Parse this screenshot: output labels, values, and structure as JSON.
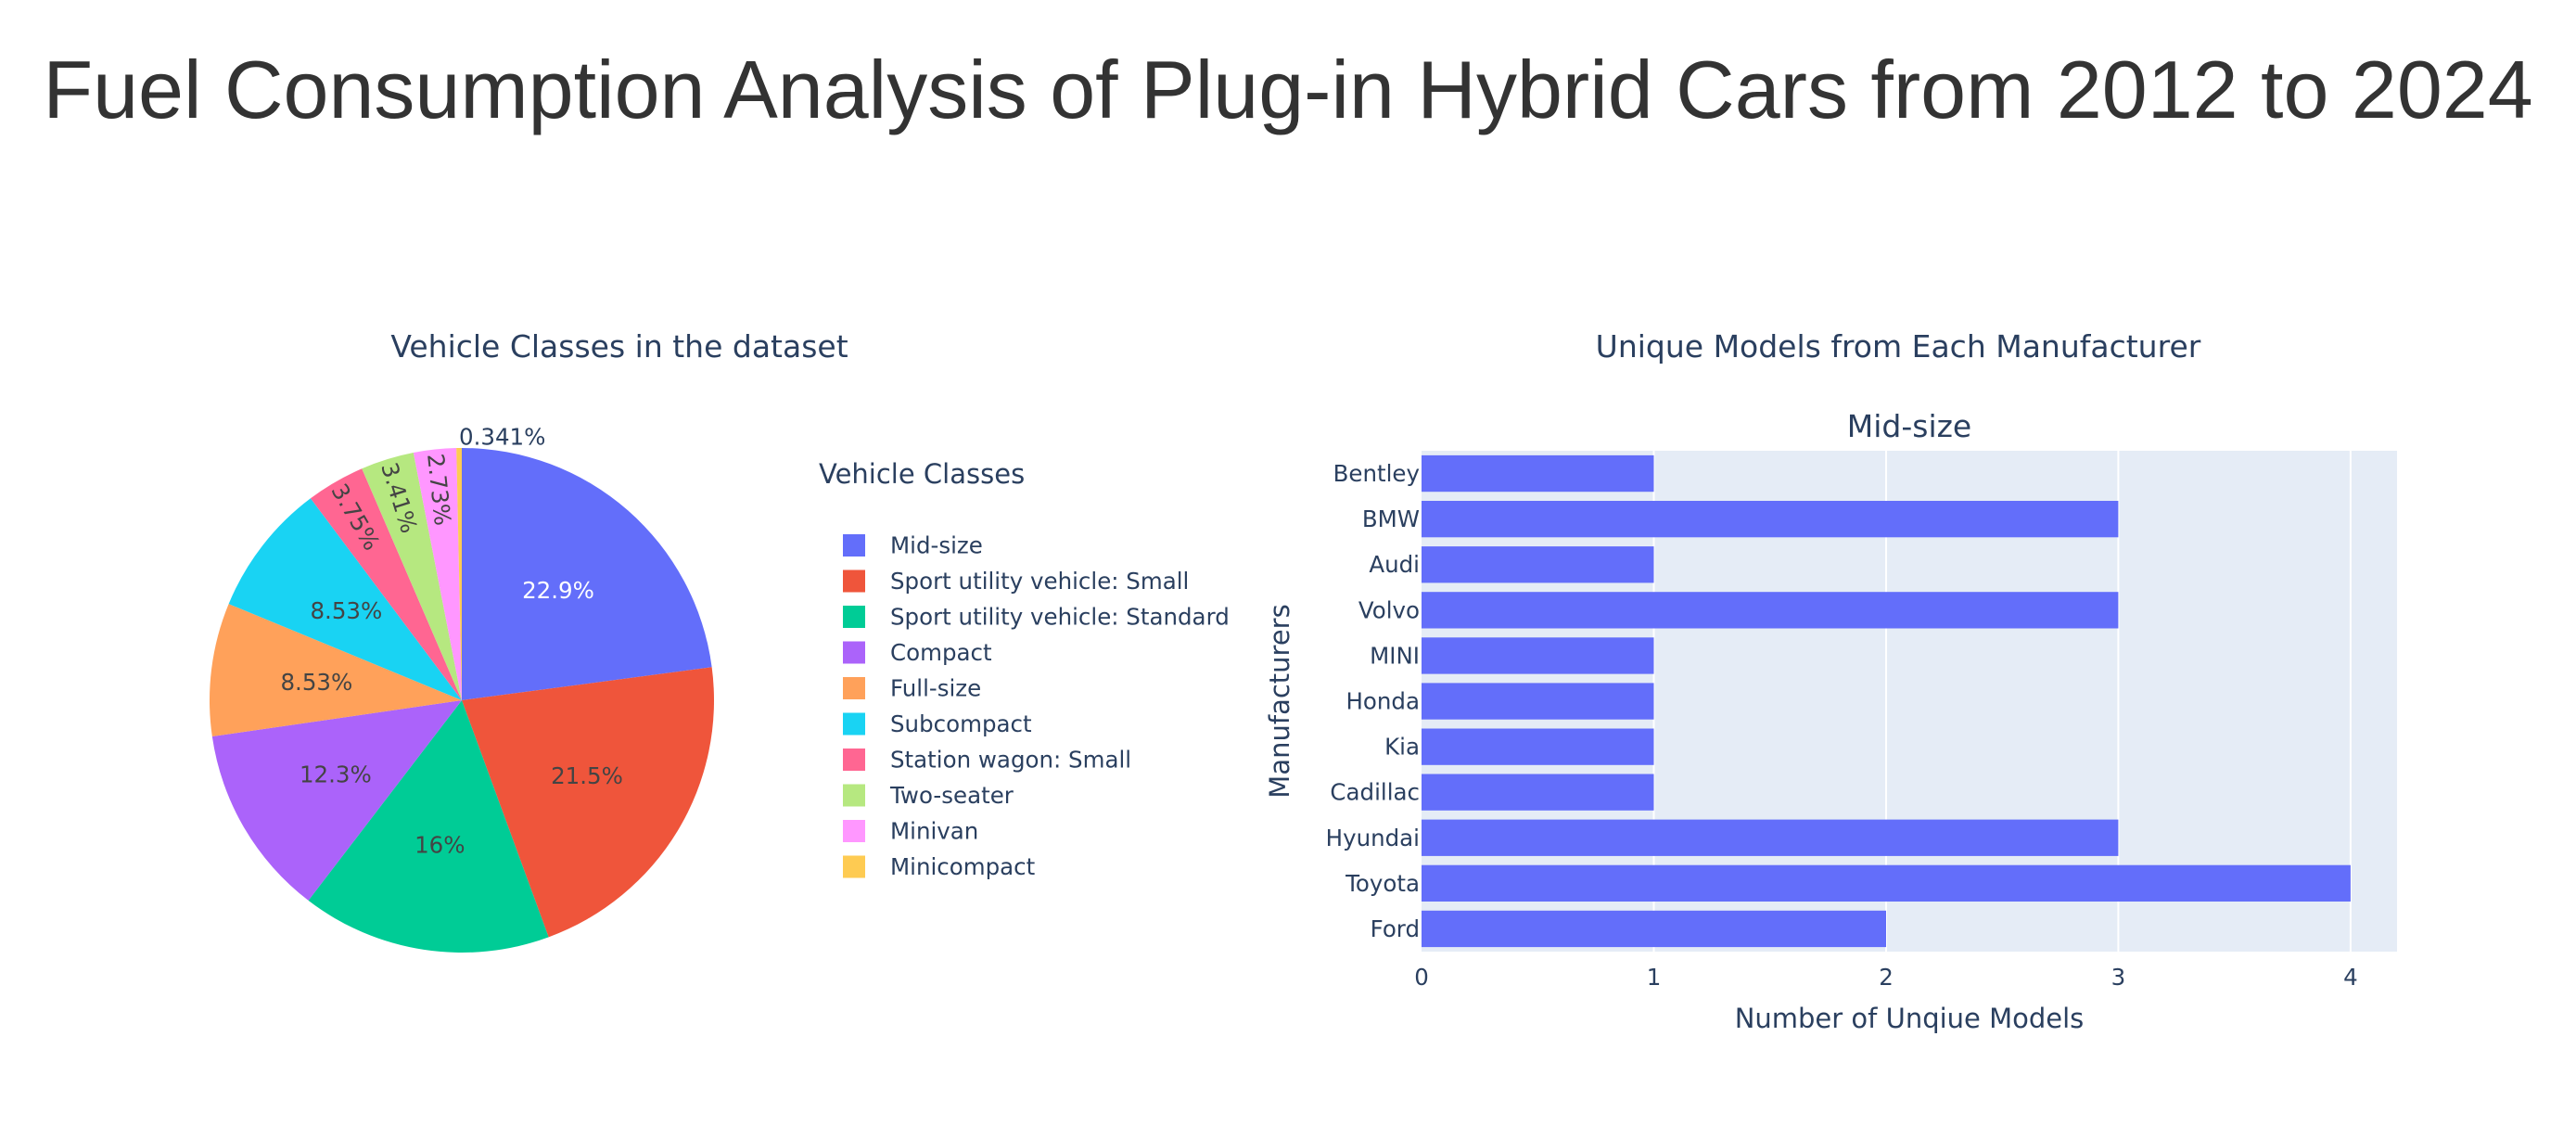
{
  "page": {
    "title": "Fuel Consumption Analysis of Plug-in Hybrid Cars from 2012 to 2024"
  },
  "chart_data": [
    {
      "type": "pie",
      "title": "Vehicle Classes in the dataset",
      "legend_title": "Vehicle Classes",
      "legend_position": "right",
      "direction": "clockwise",
      "start": "top",
      "slices": [
        {
          "label": "Mid-size",
          "percent": 22.9,
          "text": "22.9%",
          "color": "#636efa",
          "text_color": "#ffffff"
        },
        {
          "label": "Sport utility vehicle: Small",
          "percent": 21.5,
          "text": "21.5%",
          "color": "#EF553B",
          "text_color": "#444444"
        },
        {
          "label": "Sport utility vehicle: Standard",
          "percent": 16.0,
          "text": "16%",
          "color": "#00cc96",
          "text_color": "#444444"
        },
        {
          "label": "Compact",
          "percent": 12.3,
          "text": "12.3%",
          "color": "#ab63fa",
          "text_color": "#444444"
        },
        {
          "label": "Full-size",
          "percent": 8.53,
          "text": "8.53%",
          "color": "#FFA15A",
          "text_color": "#444444"
        },
        {
          "label": "Subcompact",
          "percent": 8.53,
          "text": "8.53%",
          "color": "#19d3f3",
          "text_color": "#444444"
        },
        {
          "label": "Station wagon: Small",
          "percent": 3.75,
          "text": "3.75%",
          "color": "#FF6692",
          "text_color": "#444444"
        },
        {
          "label": "Two-seater",
          "percent": 3.41,
          "text": "3.41%",
          "color": "#B6E880",
          "text_color": "#444444"
        },
        {
          "label": "Minivan",
          "percent": 2.73,
          "text": "2.73%",
          "color": "#FF97FF",
          "text_color": "#444444"
        },
        {
          "label": "Minicompact",
          "percent": 0.341,
          "text": "0.341%",
          "color": "#FECB52",
          "text_color": "#444444"
        }
      ]
    },
    {
      "type": "bar",
      "orientation": "horizontal",
      "title": "Unique Models from Each Manufacturer",
      "subtitle": "Mid-size",
      "xlabel": "Number of Unqiue Models",
      "ylabel": "Manufacturers",
      "xlim": [
        0,
        4.2
      ],
      "xticks": [
        0,
        1,
        2,
        3,
        4
      ],
      "grid": true,
      "bar_color": "#636efa",
      "plot_bg": "#E5ECF6",
      "categories": [
        "Bentley",
        "BMW",
        "Audi",
        "Volvo",
        "MINI",
        "Honda",
        "Kia",
        "Cadillac",
        "Hyundai",
        "Toyota",
        "Ford"
      ],
      "values": [
        1,
        3,
        1,
        3,
        1,
        1,
        1,
        1,
        3,
        4,
        2
      ]
    }
  ]
}
